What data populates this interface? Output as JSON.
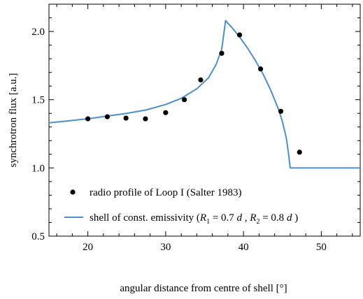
{
  "chart_data": {
    "type": "line",
    "xlabel": "angular distance from centre of shell [°]",
    "ylabel": "synchrotron flux [a.u.]",
    "xlim": [
      15,
      55
    ],
    "ylim": [
      0.5,
      2.2
    ],
    "xticks": [
      20,
      30,
      40,
      50
    ],
    "yticks": [
      0.5,
      1.0,
      1.5,
      2.0
    ],
    "xtick_labels": [
      "20",
      "30",
      "40",
      "50"
    ],
    "ytick_labels": [
      "0.5",
      "1.0",
      "1.5",
      "2.0"
    ],
    "grid": false,
    "legend_position": "lower-left",
    "series": [
      {
        "name": "radio profile of Loop I (Salter 1983)",
        "kind": "scatter",
        "color": "#000000",
        "x": [
          20.0,
          22.5,
          24.9,
          27.4,
          30.0,
          32.4,
          34.5,
          37.2,
          39.5,
          42.2,
          44.8,
          47.2
        ],
        "y": [
          1.36,
          1.375,
          1.365,
          1.36,
          1.405,
          1.5,
          1.645,
          1.84,
          1.975,
          1.725,
          1.415,
          1.115
        ]
      },
      {
        "name": "shell of const. emissivity (R1 = 0.7 d , R2 = 0.8 d )",
        "kind": "line",
        "color": "#4a90d0",
        "x": [
          15,
          17.5,
          20,
          22.5,
          25,
          27.5,
          30,
          32,
          34,
          35.5,
          36.5,
          37.2,
          37.7,
          38.0,
          38.5,
          39.5,
          40.5,
          41.5,
          42.5,
          43.5,
          44.5,
          45.0,
          45.5,
          45.8,
          46.0,
          50,
          55
        ],
        "y": [
          1.33,
          1.345,
          1.36,
          1.38,
          1.4,
          1.425,
          1.465,
          1.51,
          1.58,
          1.66,
          1.76,
          1.87,
          2.08,
          2.06,
          2.03,
          1.96,
          1.88,
          1.79,
          1.69,
          1.57,
          1.43,
          1.34,
          1.22,
          1.1,
          1.0,
          1.0,
          1.0
        ]
      }
    ],
    "legend": {
      "scatter_label": "radio profile of Loop I (Salter 1983)",
      "line_prefix": "shell of const. emissivity (",
      "r1_symbol": "R",
      "r1_sub": "1",
      "r1_value": " = 0.7 ",
      "d1": "d",
      "sep": " , ",
      "r2_symbol": "R",
      "r2_sub": "2",
      "r2_value": " = 0.8 ",
      "d2": "d",
      "line_suffix": " )"
    }
  }
}
